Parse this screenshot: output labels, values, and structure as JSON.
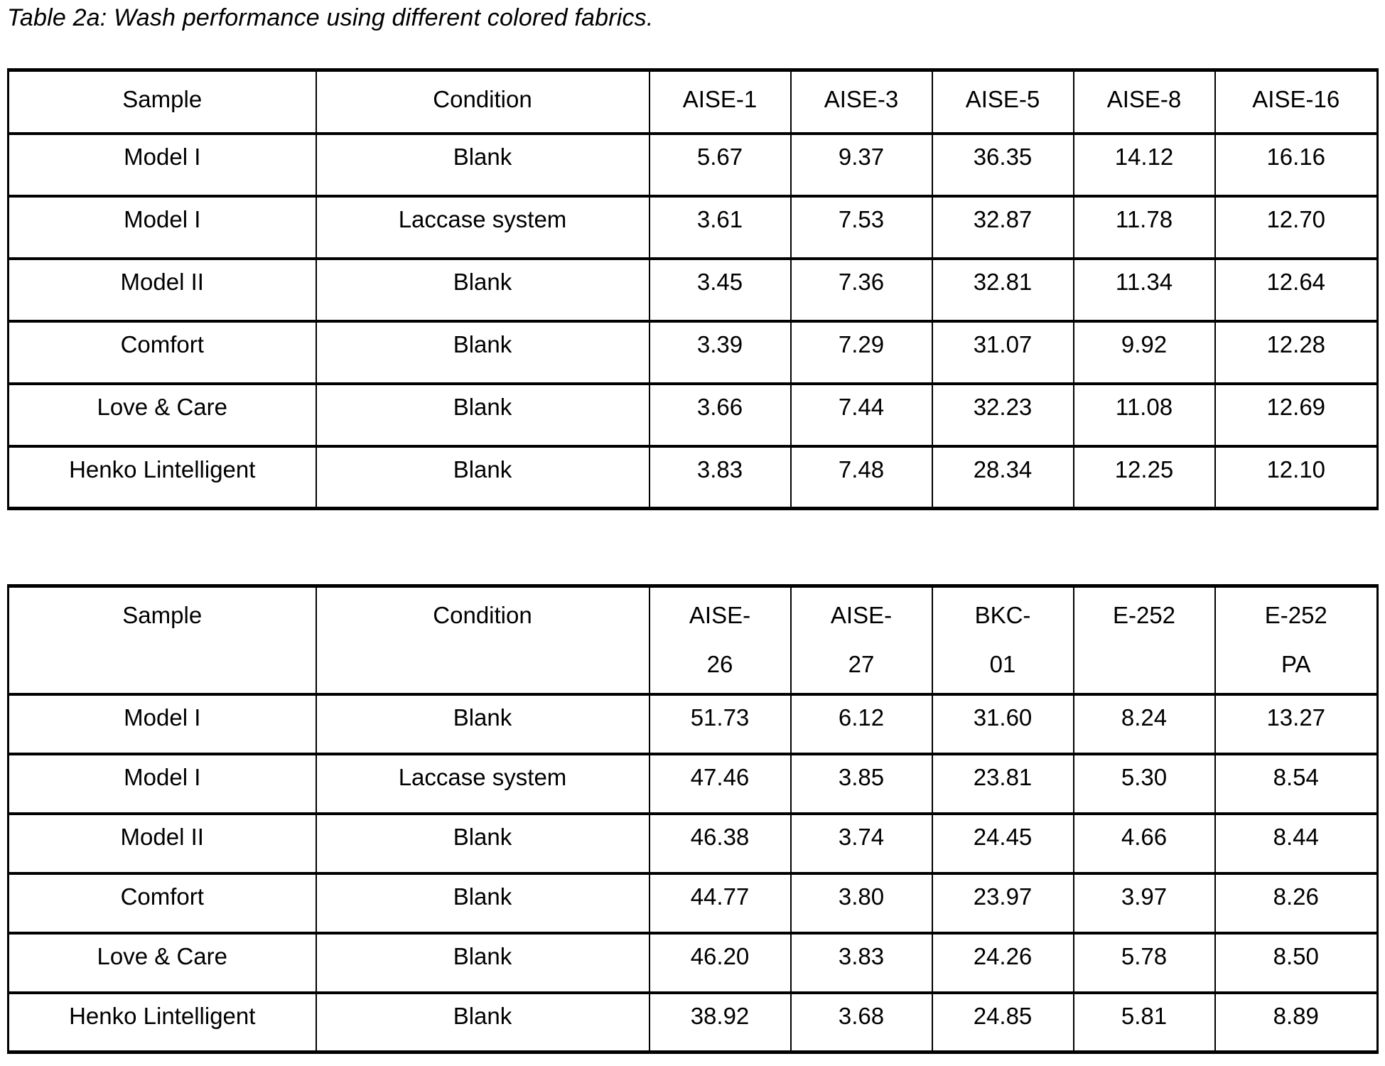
{
  "title": "Table 2a: Wash performance using different colored fabrics.",
  "tables": [
    {
      "headers": [
        "Sample",
        "Condition",
        "AISE-1",
        "AISE-3",
        "AISE-5",
        "AISE-8",
        "AISE-16"
      ],
      "rows": [
        [
          "Model I",
          "Blank",
          "5.67",
          "9.37",
          "36.35",
          "14.12",
          "16.16"
        ],
        [
          "Model I",
          "Laccase system",
          "3.61",
          "7.53",
          "32.87",
          "11.78",
          "12.70"
        ],
        [
          "Model II",
          "Blank",
          "3.45",
          "7.36",
          "32.81",
          "11.34",
          "12.64"
        ],
        [
          "Comfort",
          "Blank",
          "3.39",
          "7.29",
          "31.07",
          "9.92",
          "12.28"
        ],
        [
          "Love & Care",
          "Blank",
          "3.66",
          "7.44",
          "32.23",
          "11.08",
          "12.69"
        ],
        [
          "Henko Lintelligent",
          "Blank",
          "3.83",
          "7.48",
          "28.34",
          "12.25",
          "12.10"
        ]
      ]
    },
    {
      "headers": [
        "Sample",
        "Condition",
        "AISE-\n26",
        "AISE-\n27",
        "BKC-\n01",
        "E-252",
        "E-252\nPA"
      ],
      "rows": [
        [
          "Model I",
          "Blank",
          "51.73",
          "6.12",
          "31.60",
          "8.24",
          "13.27"
        ],
        [
          "Model I",
          "Laccase system",
          "47.46",
          "3.85",
          "23.81",
          "5.30",
          "8.54"
        ],
        [
          "Model II",
          "Blank",
          "46.38",
          "3.74",
          "24.45",
          "4.66",
          "8.44"
        ],
        [
          "Comfort",
          "Blank",
          "44.77",
          "3.80",
          "23.97",
          "3.97",
          "8.26"
        ],
        [
          "Love & Care",
          "Blank",
          "46.20",
          "3.83",
          "24.26",
          "5.78",
          "8.50"
        ],
        [
          "Henko Lintelligent",
          "Blank",
          "38.92",
          "3.68",
          "24.85",
          "5.81",
          "8.89"
        ]
      ]
    }
  ]
}
